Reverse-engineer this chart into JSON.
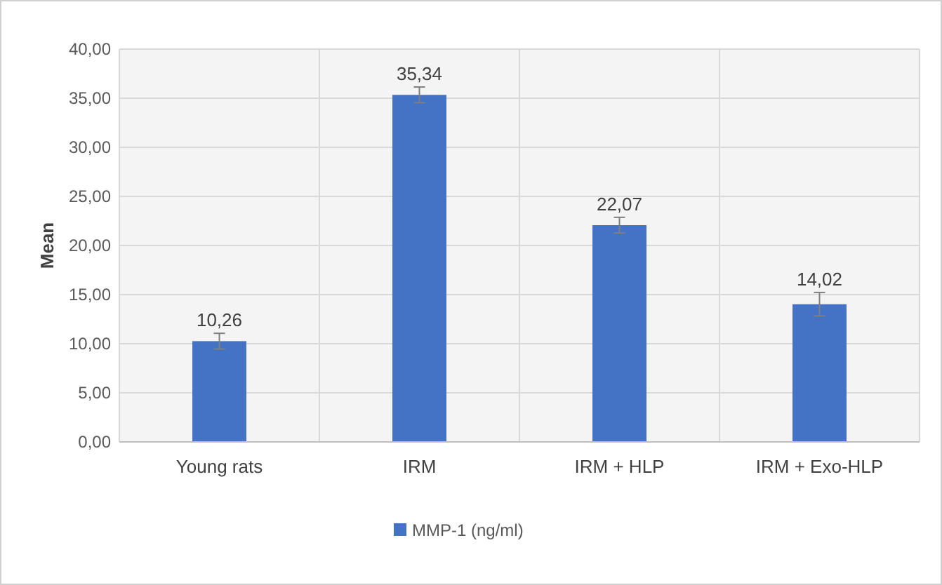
{
  "chart_data": {
    "type": "bar",
    "ylabel": "Mean",
    "categories": [
      "Young rats",
      "IRM",
      "IRM + HLP",
      "IRM + Exo-HLP"
    ],
    "series": [
      {
        "name": "MMP-1 (ng/ml)",
        "color": "#4472c4",
        "values": [
          10.26,
          35.34,
          22.07,
          14.02
        ],
        "errors": [
          0.8,
          0.8,
          0.8,
          1.2
        ],
        "value_labels": [
          "10,26",
          "35,34",
          "22,07",
          "14,02"
        ]
      }
    ],
    "ylim": [
      0,
      40
    ],
    "yticks": [
      {
        "value": 0,
        "label": "0,00"
      },
      {
        "value": 5,
        "label": "5,00"
      },
      {
        "value": 10,
        "label": "10,00"
      },
      {
        "value": 15,
        "label": "15,00"
      },
      {
        "value": 20,
        "label": "20,00"
      },
      {
        "value": 25,
        "label": "25,00"
      },
      {
        "value": 30,
        "label": "30,00"
      },
      {
        "value": 35,
        "label": "35,00"
      },
      {
        "value": 40,
        "label": "40,00"
      }
    ],
    "grid": true,
    "legend": "bottom"
  }
}
